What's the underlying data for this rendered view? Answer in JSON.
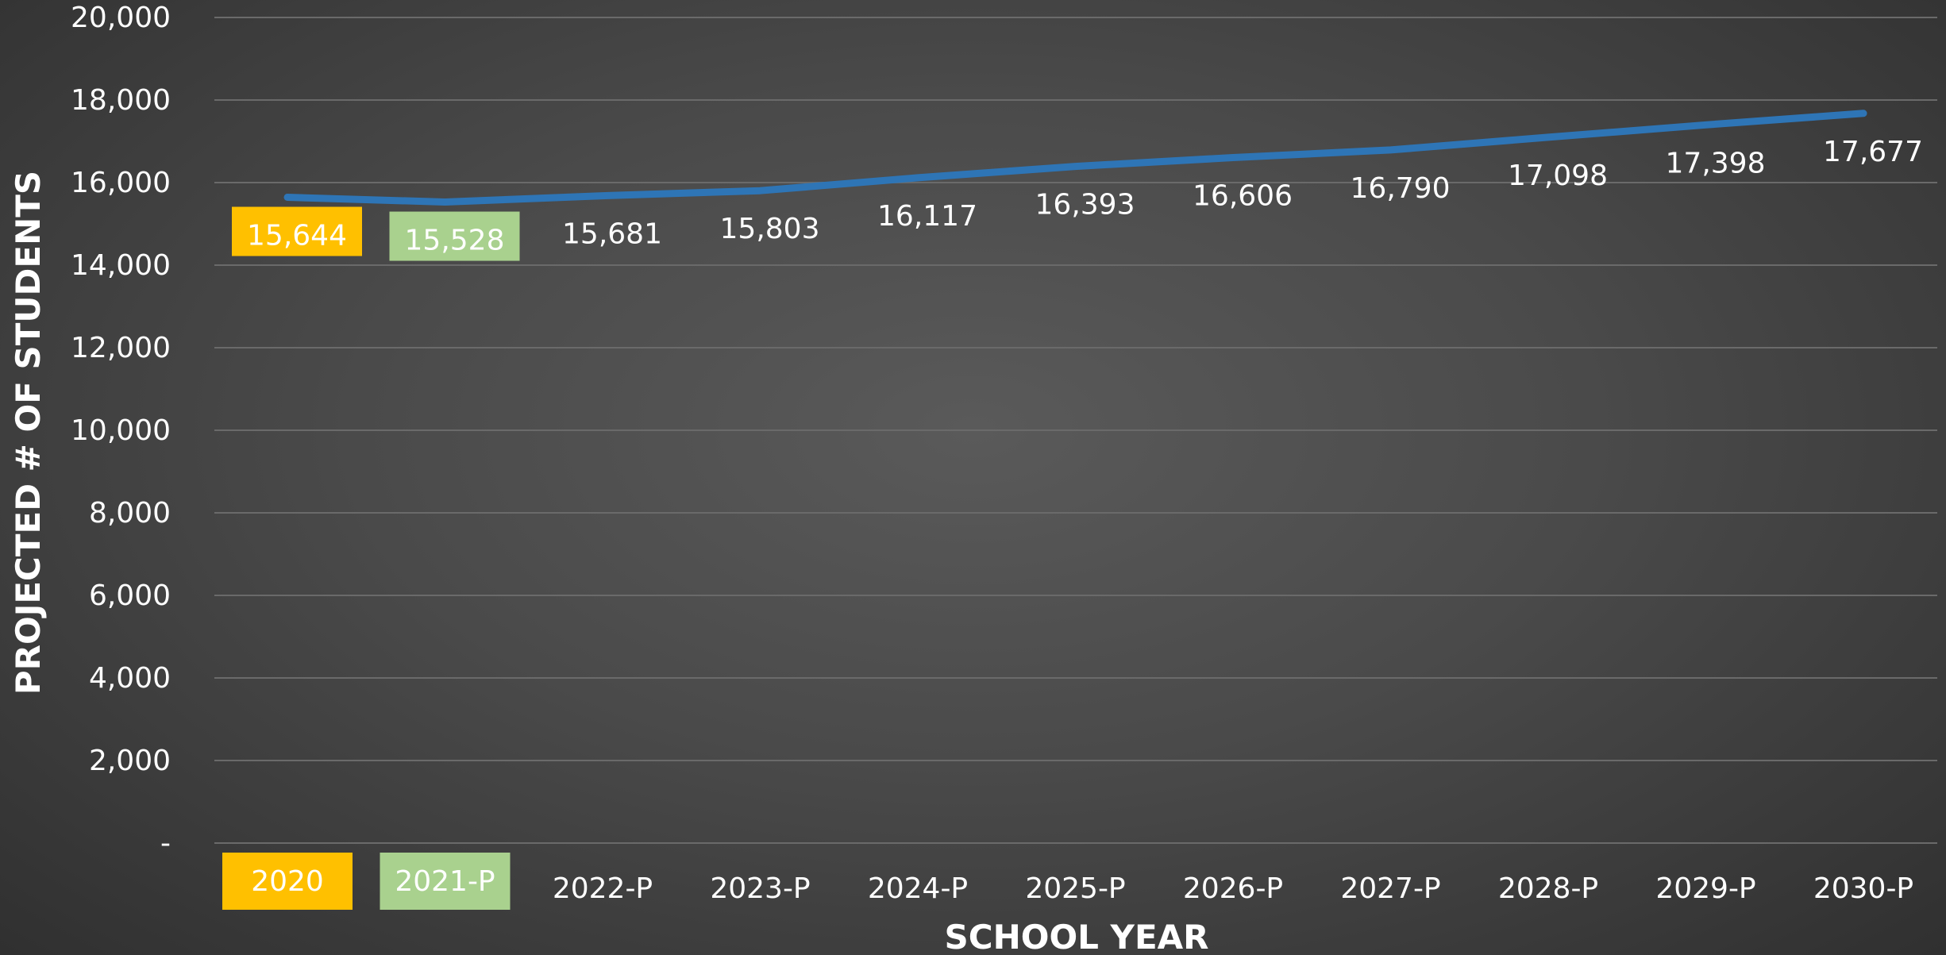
{
  "chart_data": {
    "type": "line",
    "xlabel": "SCHOOL YEAR",
    "ylabel": "PROJECTED # OF STUDENTS",
    "ylim": [
      0,
      20000
    ],
    "y_ticks": [
      "-",
      "2,000",
      "4,000",
      "6,000",
      "8,000",
      "10,000",
      "12,000",
      "14,000",
      "16,000",
      "18,000",
      "20,000"
    ],
    "grid": true,
    "categories": [
      "2020",
      "2021-P",
      "2022-P",
      "2023-P",
      "2024-P",
      "2025-P",
      "2026-P",
      "2027-P",
      "2028-P",
      "2029-P",
      "2030-P"
    ],
    "values": [
      15644,
      15528,
      15681,
      15803,
      16117,
      16393,
      16606,
      16790,
      17098,
      17398,
      17677
    ],
    "data_labels": [
      "15,644",
      "15,528",
      "15,681",
      "15,803",
      "16,117",
      "16,393",
      "16,606",
      "16,790",
      "17,098",
      "17,398",
      "17,677"
    ],
    "colors": {
      "line": "#2e75b6",
      "highlight_actual": "#ffc000",
      "highlight_projected_first": "#a9d18e",
      "text": "#ffffff",
      "gridline": "#6a6a6a"
    },
    "highlighted_categories": {
      "2020": "#ffc000",
      "2021-P": "#a9d18e"
    }
  }
}
